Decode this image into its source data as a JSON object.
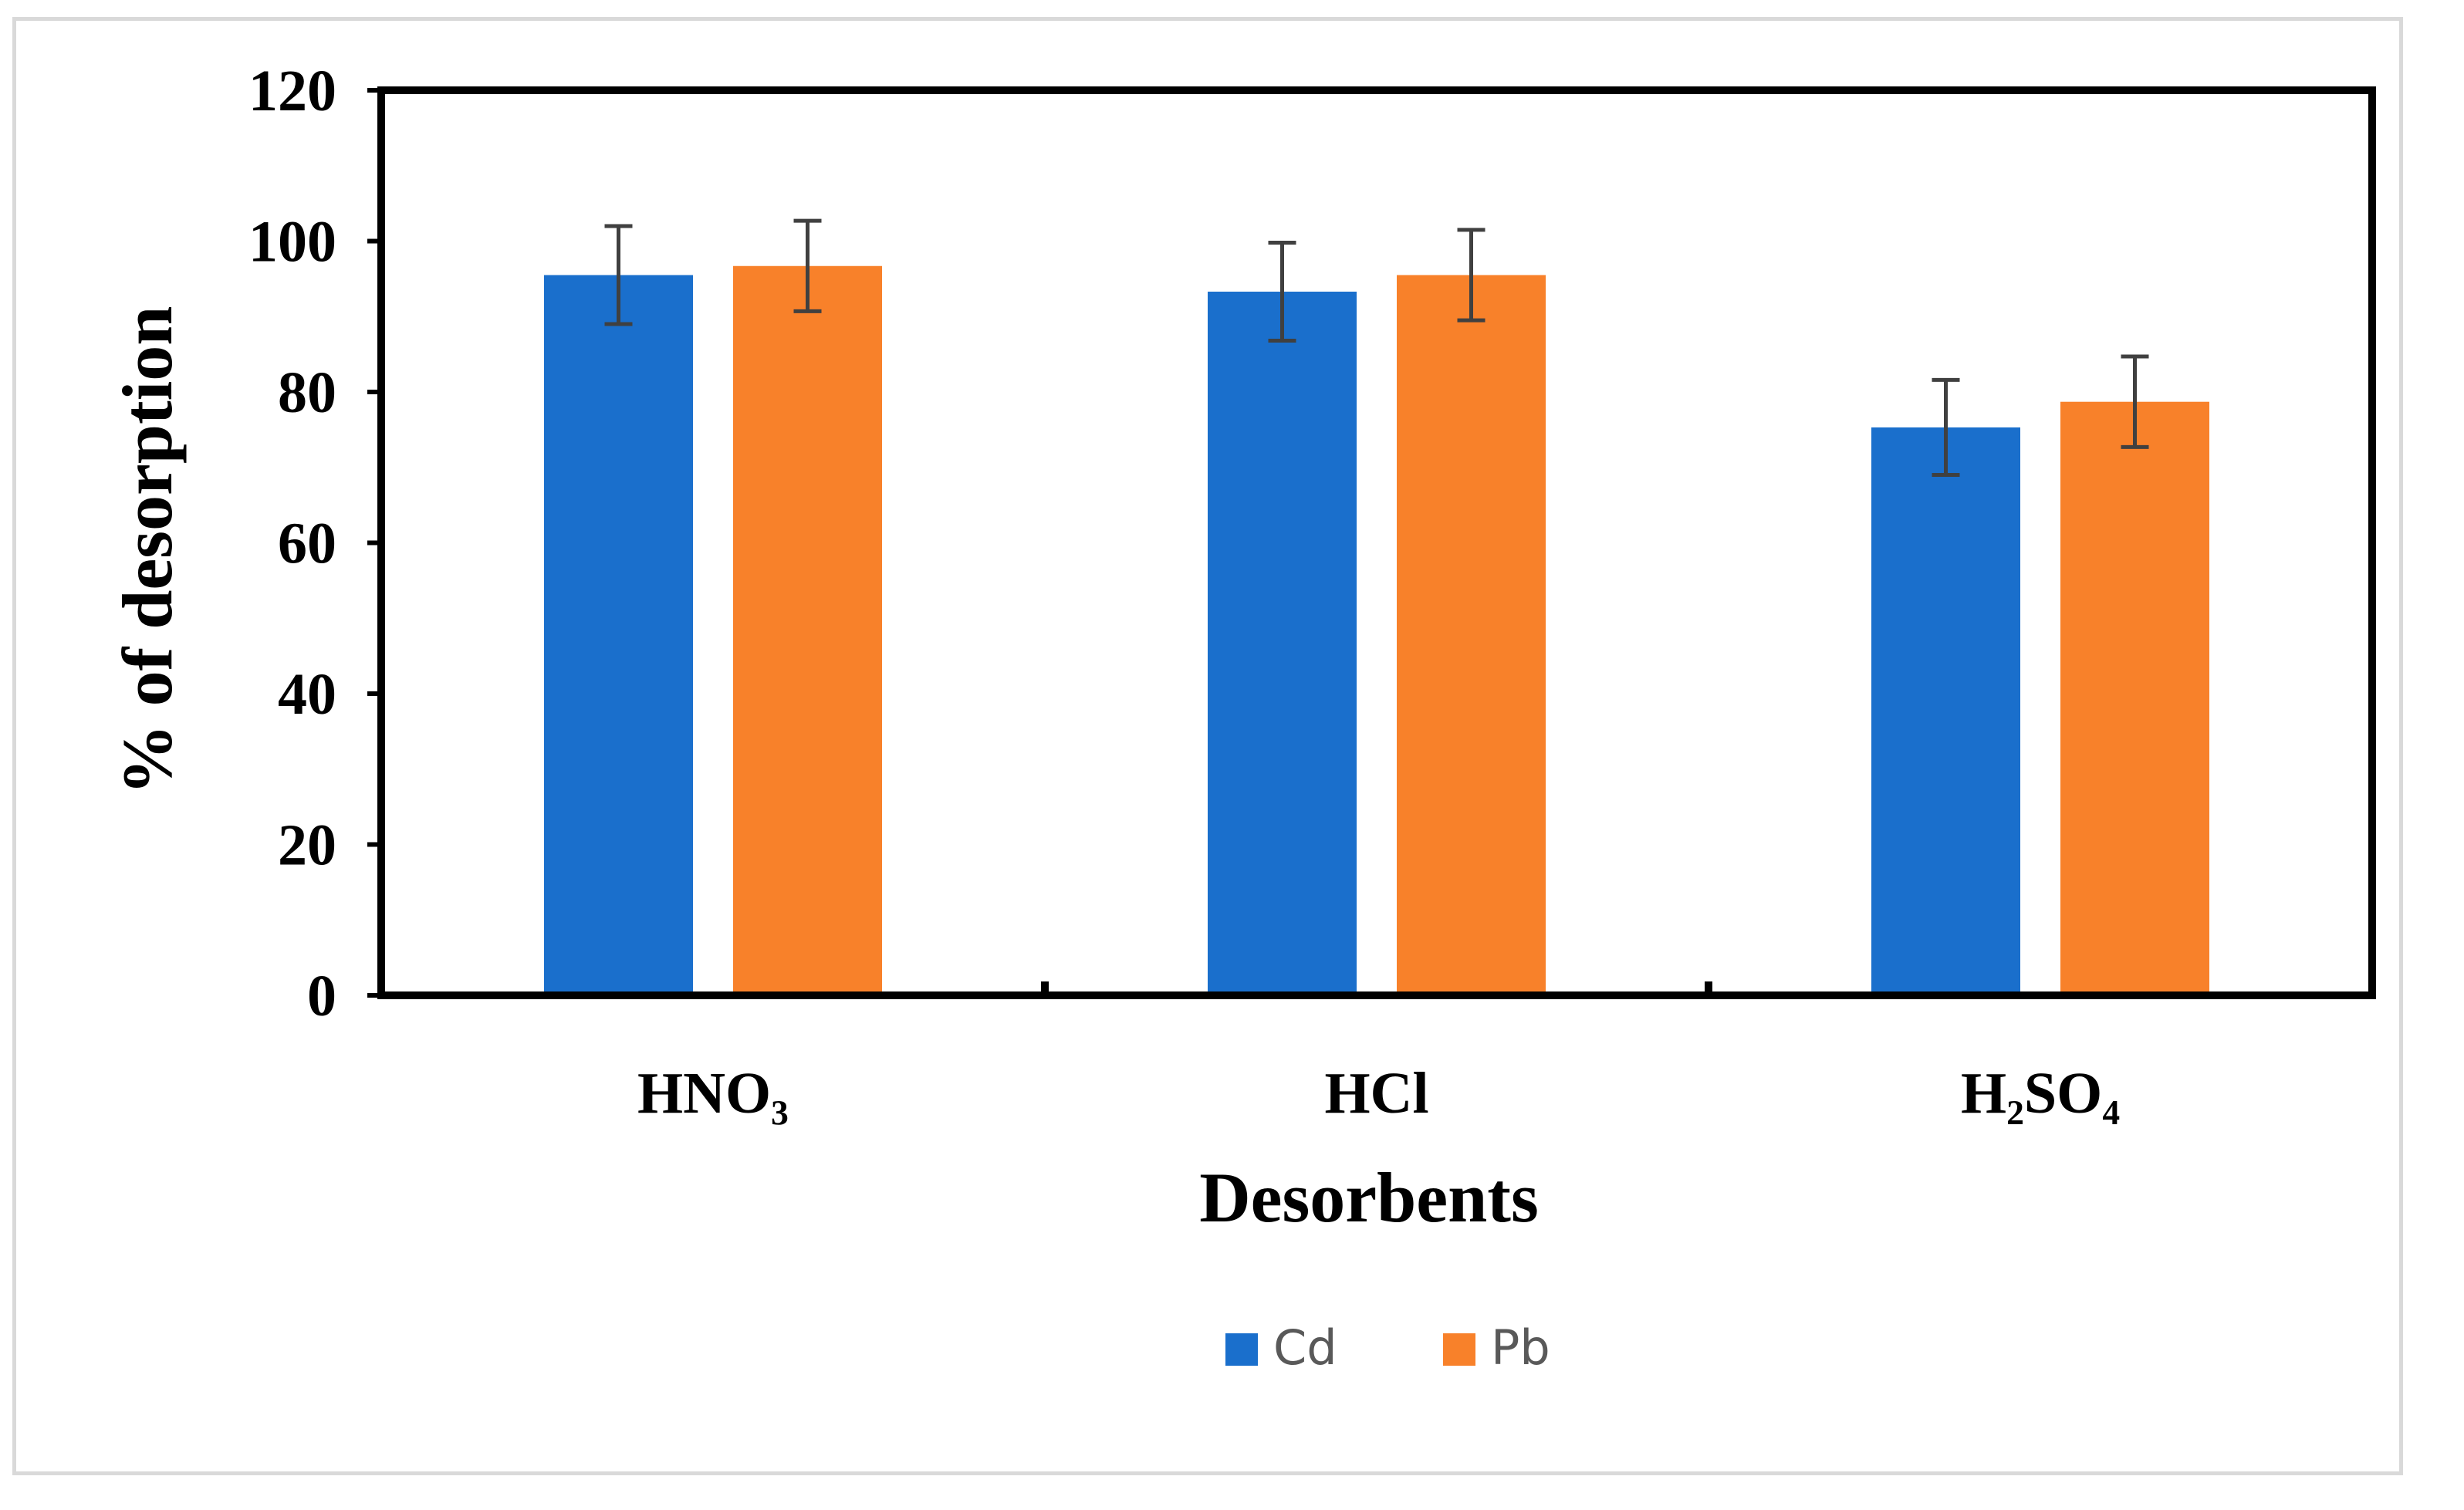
{
  "chart_data": {
    "type": "bar",
    "title": "",
    "xlabel": "Desorbents",
    "ylabel": "% of desorption",
    "ylim": [
      0,
      120
    ],
    "yticks": [
      0,
      20,
      40,
      60,
      80,
      100,
      120
    ],
    "categories": [
      "HNO₃",
      "HCl",
      "H₂SO₄"
    ],
    "series": [
      {
        "name": "Cd",
        "values": [
          95.5,
          93.3,
          75.3
        ],
        "errors": [
          6.5,
          6.5,
          6.3
        ],
        "color": "#1a6fcc"
      },
      {
        "name": "Pb",
        "values": [
          96.7,
          95.5,
          78.7
        ],
        "errors": [
          6.0,
          6.0,
          6.0
        ],
        "color": "#f8812a"
      }
    ],
    "legend": "bottom-center",
    "grid": false
  }
}
